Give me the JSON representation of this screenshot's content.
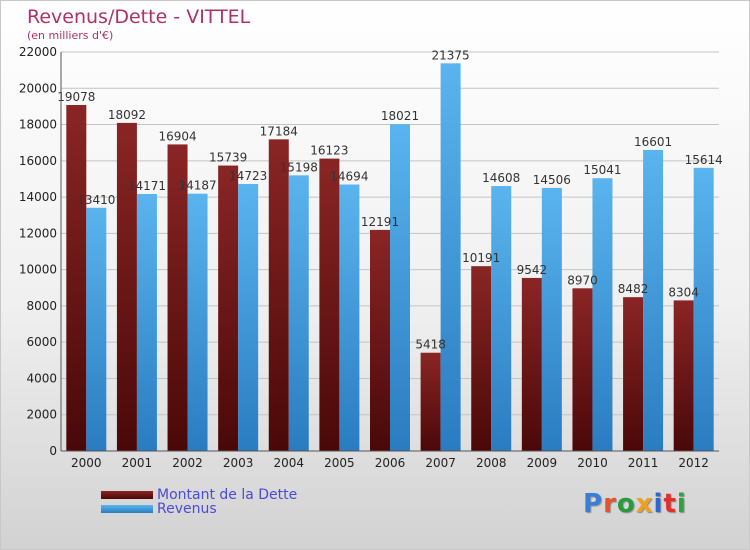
{
  "title": "Revenus/Dette - VITTEL",
  "subtitle": "(en milliers d'€)",
  "logo": {
    "text": "Proxiti",
    "colors": [
      "#3a7fd5",
      "#e8522a",
      "#2a9a3a",
      "#f0a020",
      "#2a6ad0",
      "#e03030",
      "#30a040"
    ]
  },
  "colors": {
    "dette": "#7a1c1c",
    "revenus": "#4aa8e8"
  },
  "chart_data": {
    "type": "bar",
    "title": "Revenus/Dette - VITTEL",
    "categories": [
      "2000",
      "2001",
      "2002",
      "2003",
      "2004",
      "2005",
      "2006",
      "2007",
      "2008",
      "2009",
      "2010",
      "2011",
      "2012"
    ],
    "series": [
      {
        "name": "Montant de la Dette",
        "values": [
          19078,
          18092,
          16904,
          15739,
          17184,
          16123,
          12191,
          5418,
          10191,
          9542,
          8970,
          8482,
          8304
        ],
        "labels": [
          "19078",
          "18092",
          "16904",
          "15739",
          "17184",
          "16123",
          "12191",
          "5418",
          "10191",
          "9542",
          "8970",
          "8482",
          "8304"
        ]
      },
      {
        "name": "Revenus",
        "values": [
          13410,
          14171,
          14187,
          14723,
          15198,
          14694,
          18021,
          21375,
          14608,
          14506,
          15041,
          16601,
          15614
        ],
        "labels": [
          "13410",
          "14171",
          "14187",
          "14723",
          "15198",
          "14694",
          "18021",
          "21375",
          "14608",
          "14506",
          "15041",
          "16601",
          "15614"
        ]
      }
    ],
    "yticks": [
      0,
      2000,
      4000,
      6000,
      8000,
      10000,
      12000,
      14000,
      16000,
      18000,
      20000,
      22000
    ],
    "ylim": [
      0,
      22000
    ],
    "grid": true,
    "legend_position": "bottom-left"
  }
}
